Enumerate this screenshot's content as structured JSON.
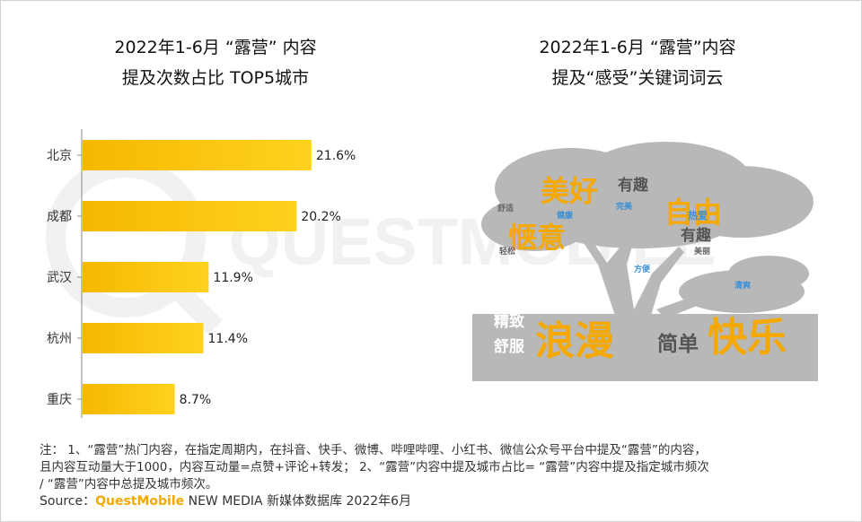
{
  "left_panel": {
    "title_line1": "2022年1-6月 “露营” 内容",
    "title_line2": "提及次数占比 TOP5城市"
  },
  "right_panel": {
    "title_line1": "2022年1-6月 “露营”内容",
    "title_line2": "提及“感受”关键词词云"
  },
  "chart_data": {
    "type": "bar",
    "orientation": "horizontal",
    "categories": [
      "北京",
      "成都",
      "武汉",
      "杭州",
      "重庆"
    ],
    "values": [
      21.6,
      20.2,
      11.9,
      11.4,
      8.7
    ],
    "value_labels": [
      "21.6%",
      "20.2%",
      "11.9%",
      "11.4%",
      "8.7%"
    ],
    "title": "2022年1-6月 “露营” 内容提及次数占比 TOP5城市",
    "xlim": [
      0,
      25
    ],
    "grid": false,
    "colors": {
      "bar_start": "#f5b800",
      "bar_end": "#ffd21f"
    }
  },
  "word_cloud": {
    "words": [
      {
        "text": "美好",
        "size": "large",
        "color": "#f5a800"
      },
      {
        "text": "有趣",
        "size": "medium",
        "color": "#555555"
      },
      {
        "text": "自由",
        "size": "large",
        "color": "#f5a800"
      },
      {
        "text": "舒适",
        "size": "tiny",
        "color": "#666666"
      },
      {
        "text": "健康",
        "size": "tiny",
        "color": "#3a8fd6"
      },
      {
        "text": "完美",
        "size": "tiny",
        "color": "#3a8fd6"
      },
      {
        "text": "热爱",
        "size": "small",
        "color": "#3a8fd6"
      },
      {
        "text": "惬意",
        "size": "large",
        "color": "#f5a800"
      },
      {
        "text": "有趣",
        "size": "medium",
        "color": "#555555"
      },
      {
        "text": "轻松",
        "size": "tiny",
        "color": "#666666"
      },
      {
        "text": "美丽",
        "size": "tiny",
        "color": "#666666"
      },
      {
        "text": "方便",
        "size": "tiny",
        "color": "#3a8fd6"
      },
      {
        "text": "清爽",
        "size": "tiny",
        "color": "#3a8fd6"
      },
      {
        "text": "精致",
        "size": "medium",
        "color": "#ffffff"
      },
      {
        "text": "舒服",
        "size": "medium",
        "color": "#ffffff"
      },
      {
        "text": "浪漫",
        "size": "xlarge",
        "color": "#f5a800"
      },
      {
        "text": "简单",
        "size": "medium-large",
        "color": "#555555"
      },
      {
        "text": "快乐",
        "size": "xlarge",
        "color": "#f5a800"
      }
    ],
    "tree_color": "#b8b8b8"
  },
  "watermark": {
    "text": "QUESTMOBILE"
  },
  "notes": {
    "line1": "注： 1、“露营”热门内容，在指定周期内，在抖音、快手、微博、哔哩哔哩、小红书、微信公众号平台中提及“露营”的内容，",
    "line2": "且内容互动量大于1000，内容互动量=点赞+评论+转发； 2、“露营”内容中提及城市占比= “露营”内容中提及指定城市频次",
    "line3": "/ “露营”内容中总提及城市频次。"
  },
  "source": {
    "prefix": "Source：",
    "brand": "QuestMobile",
    "rest": " NEW MEDIA 新媒体数据库 2022年6月"
  }
}
